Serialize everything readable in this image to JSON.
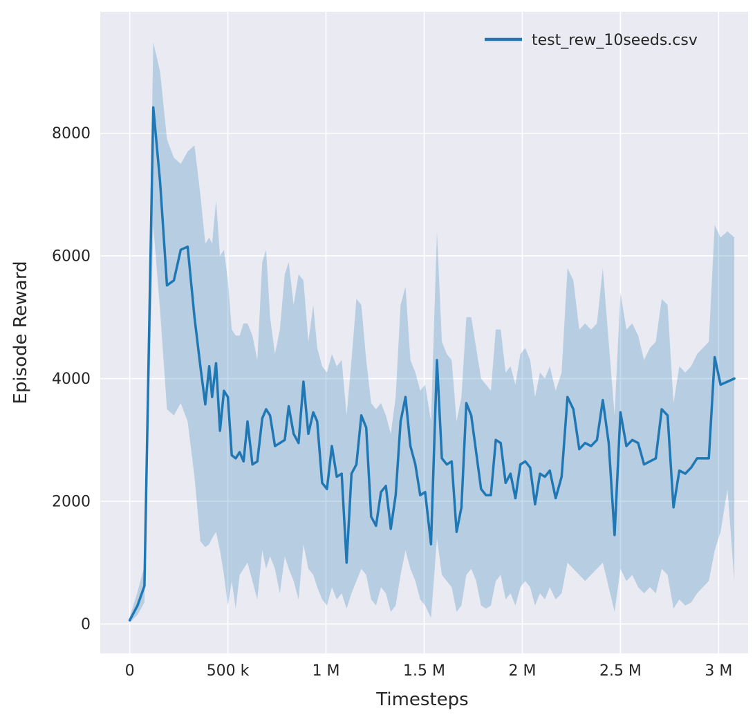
{
  "figure": {
    "background": "#ffffff",
    "plot_background": "#eaeaf2",
    "grid_color": "#ffffff",
    "text_color": "#262626"
  },
  "chart_data": {
    "type": "line",
    "title": "",
    "xlabel": "Timesteps",
    "ylabel": "Episode Reward",
    "grid": true,
    "legend_position": "upper right",
    "legend": [
      {
        "label": "test_rew_10seeds.csv",
        "color": "#1f77b4"
      }
    ],
    "line_color": "#1f77b4",
    "line_width": 3.5,
    "band_color": "#1f77b4",
    "band_opacity": 0.25,
    "xlim": [
      -150000,
      3150000
    ],
    "ylim": [
      -480,
      9980
    ],
    "x_ticks": [
      {
        "value": 0,
        "label": "0"
      },
      {
        "value": 500000,
        "label": "500 k"
      },
      {
        "value": 1000000,
        "label": "1 M"
      },
      {
        "value": 1500000,
        "label": "1.5 M"
      },
      {
        "value": 2000000,
        "label": "2 M"
      },
      {
        "value": 2500000,
        "label": "2.5 M"
      },
      {
        "value": 3000000,
        "label": "3 M"
      }
    ],
    "y_ticks": [
      {
        "value": 0,
        "label": "0"
      },
      {
        "value": 2000,
        "label": "2000"
      },
      {
        "value": 4000,
        "label": "4000"
      },
      {
        "value": 6000,
        "label": "6000"
      },
      {
        "value": 8000,
        "label": "8000"
      }
    ],
    "series": [
      {
        "name": "test_rew_10seeds.csv",
        "points_format": [
          "x",
          "mean",
          "lo",
          "hi"
        ],
        "points": [
          [
            0,
            60,
            20,
            110
          ],
          [
            40000,
            300,
            150,
            520
          ],
          [
            75000,
            620,
            350,
            950
          ],
          [
            120000,
            8420,
            6500,
            9480
          ],
          [
            155000,
            7200,
            5100,
            9000
          ],
          [
            190000,
            5520,
            3500,
            7900
          ],
          [
            225000,
            5600,
            3400,
            7600
          ],
          [
            260000,
            6100,
            3600,
            7500
          ],
          [
            295000,
            6150,
            3300,
            7700
          ],
          [
            330000,
            5000,
            2400,
            7800
          ],
          [
            360000,
            4200,
            1350,
            7000
          ],
          [
            385000,
            3580,
            1250,
            6200
          ],
          [
            405000,
            4200,
            1300,
            6300
          ],
          [
            420000,
            3700,
            1400,
            6200
          ],
          [
            440000,
            4250,
            1500,
            6900
          ],
          [
            460000,
            3150,
            1200,
            6000
          ],
          [
            480000,
            3800,
            800,
            6100
          ],
          [
            500000,
            3700,
            300,
            5600
          ],
          [
            520000,
            2750,
            700,
            4800
          ],
          [
            540000,
            2700,
            250,
            4700
          ],
          [
            560000,
            2800,
            800,
            4700
          ],
          [
            580000,
            2650,
            900,
            4900
          ],
          [
            600000,
            3300,
            1000,
            4900
          ],
          [
            625000,
            2600,
            700,
            4700
          ],
          [
            650000,
            2650,
            400,
            4300
          ],
          [
            675000,
            3350,
            1200,
            5900
          ],
          [
            695000,
            3500,
            900,
            6100
          ],
          [
            715000,
            3400,
            1100,
            5000
          ],
          [
            740000,
            2900,
            900,
            4400
          ],
          [
            765000,
            2950,
            500,
            4800
          ],
          [
            790000,
            3000,
            1100,
            5700
          ],
          [
            810000,
            3550,
            900,
            5900
          ],
          [
            835000,
            3100,
            700,
            5200
          ],
          [
            860000,
            2950,
            400,
            5700
          ],
          [
            885000,
            3950,
            1300,
            5600
          ],
          [
            910000,
            3100,
            900,
            4600
          ],
          [
            935000,
            3450,
            800,
            5200
          ],
          [
            955000,
            3300,
            600,
            4500
          ],
          [
            980000,
            2300,
            400,
            4200
          ],
          [
            1005000,
            2200,
            300,
            4100
          ],
          [
            1030000,
            2900,
            600,
            4400
          ],
          [
            1055000,
            2400,
            400,
            4200
          ],
          [
            1080000,
            2450,
            500,
            4300
          ],
          [
            1105000,
            1000,
            250,
            3400
          ],
          [
            1130000,
            2450,
            500,
            4300
          ],
          [
            1155000,
            2600,
            700,
            5300
          ],
          [
            1180000,
            3400,
            900,
            5200
          ],
          [
            1205000,
            3200,
            800,
            4300
          ],
          [
            1230000,
            1750,
            400,
            3600
          ],
          [
            1255000,
            1600,
            300,
            3500
          ],
          [
            1280000,
            2150,
            600,
            3600
          ],
          [
            1305000,
            2250,
            500,
            3400
          ],
          [
            1330000,
            1550,
            200,
            3100
          ],
          [
            1355000,
            2100,
            300,
            3700
          ],
          [
            1380000,
            3300,
            800,
            5200
          ],
          [
            1405000,
            3700,
            1200,
            5500
          ],
          [
            1430000,
            2900,
            900,
            4300
          ],
          [
            1455000,
            2600,
            700,
            4100
          ],
          [
            1480000,
            2100,
            400,
            3800
          ],
          [
            1505000,
            2150,
            300,
            3900
          ],
          [
            1535000,
            1300,
            100,
            3300
          ],
          [
            1565000,
            4300,
            1400,
            6400
          ],
          [
            1590000,
            2700,
            800,
            4600
          ],
          [
            1615000,
            2600,
            700,
            4400
          ],
          [
            1640000,
            2650,
            600,
            4300
          ],
          [
            1665000,
            1500,
            200,
            3300
          ],
          [
            1690000,
            1900,
            300,
            3700
          ],
          [
            1715000,
            3600,
            800,
            5000
          ],
          [
            1740000,
            3400,
            900,
            5000
          ],
          [
            1765000,
            2800,
            700,
            4500
          ],
          [
            1790000,
            2200,
            300,
            4000
          ],
          [
            1815000,
            2100,
            250,
            3900
          ],
          [
            1840000,
            2100,
            300,
            3800
          ],
          [
            1865000,
            3000,
            700,
            4800
          ],
          [
            1890000,
            2950,
            800,
            4800
          ],
          [
            1915000,
            2300,
            400,
            4100
          ],
          [
            1940000,
            2450,
            500,
            4200
          ],
          [
            1965000,
            2050,
            300,
            3900
          ],
          [
            1990000,
            2600,
            600,
            4400
          ],
          [
            2015000,
            2650,
            700,
            4500
          ],
          [
            2040000,
            2550,
            600,
            4300
          ],
          [
            2065000,
            1950,
            300,
            3700
          ],
          [
            2090000,
            2450,
            500,
            4100
          ],
          [
            2115000,
            2400,
            400,
            4000
          ],
          [
            2140000,
            2500,
            600,
            4200
          ],
          [
            2170000,
            2050,
            400,
            3800
          ],
          [
            2200000,
            2400,
            500,
            4100
          ],
          [
            2230000,
            3700,
            1000,
            5800
          ],
          [
            2260000,
            3500,
            900,
            5600
          ],
          [
            2290000,
            2850,
            800,
            4800
          ],
          [
            2320000,
            2950,
            700,
            4900
          ],
          [
            2350000,
            2900,
            800,
            4800
          ],
          [
            2380000,
            3000,
            900,
            4900
          ],
          [
            2410000,
            3650,
            1000,
            5800
          ],
          [
            2440000,
            2950,
            600,
            4600
          ],
          [
            2470000,
            1450,
            200,
            3400
          ],
          [
            2500000,
            3450,
            900,
            5400
          ],
          [
            2530000,
            2900,
            700,
            4800
          ],
          [
            2560000,
            3000,
            800,
            4900
          ],
          [
            2590000,
            2950,
            600,
            4700
          ],
          [
            2620000,
            2600,
            500,
            4300
          ],
          [
            2650000,
            2650,
            600,
            4500
          ],
          [
            2680000,
            2700,
            500,
            4600
          ],
          [
            2710000,
            3500,
            900,
            5300
          ],
          [
            2740000,
            3400,
            800,
            5200
          ],
          [
            2770000,
            1900,
            250,
            3600
          ],
          [
            2800000,
            2500,
            400,
            4200
          ],
          [
            2830000,
            2450,
            300,
            4100
          ],
          [
            2860000,
            2550,
            350,
            4200
          ],
          [
            2890000,
            2700,
            500,
            4400
          ],
          [
            2920000,
            2700,
            600,
            4500
          ],
          [
            2950000,
            2700,
            700,
            4600
          ],
          [
            2980000,
            4350,
            1200,
            6500
          ],
          [
            3010000,
            3900,
            1500,
            6300
          ],
          [
            3045000,
            3950,
            2200,
            6400
          ],
          [
            3080000,
            4000,
            700,
            6300
          ]
        ]
      }
    ]
  }
}
